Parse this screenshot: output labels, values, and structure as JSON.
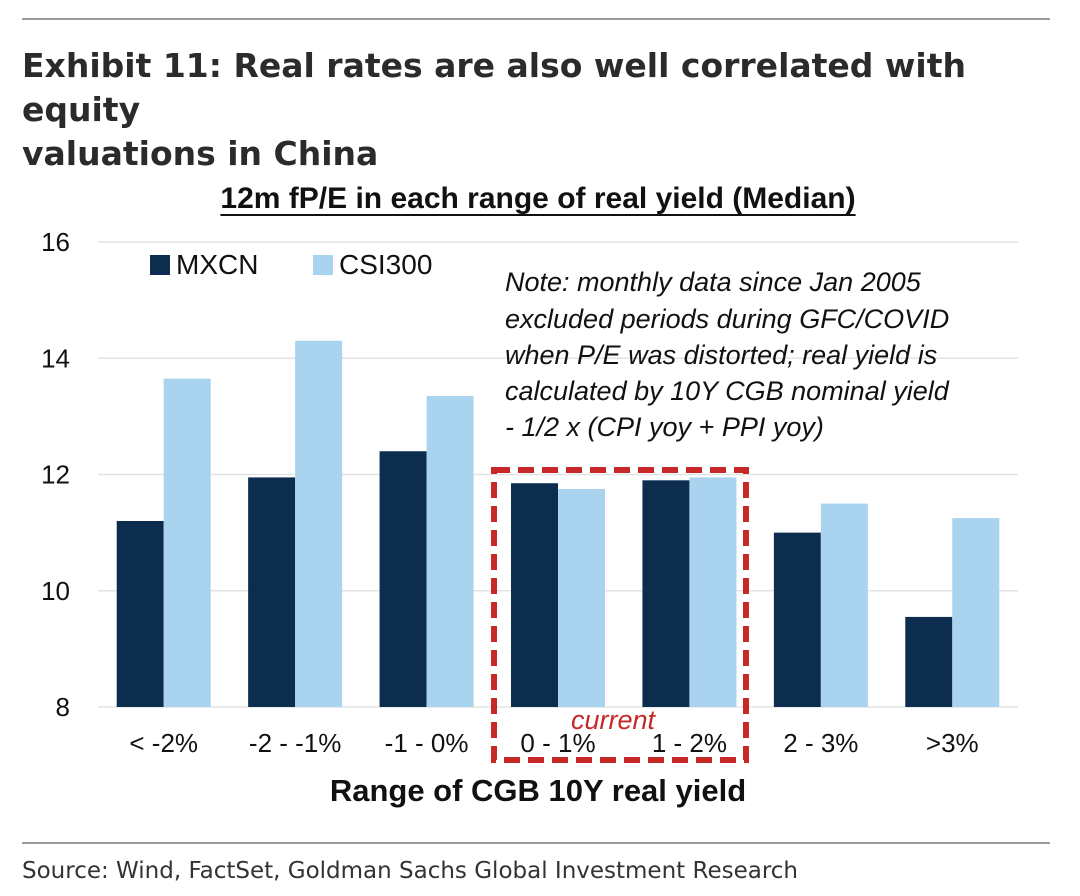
{
  "exhibit": {
    "title_line1": "Exhibit 11: Real rates are also well correlated with equity",
    "title_line2": "valuations in China",
    "source": "Source: Wind, FactSet, Goldman Sachs Global Investment Research"
  },
  "chart_data": {
    "type": "bar",
    "title": "12m fP/E in each range of real yield (Median)",
    "xlabel": "Range of CGB 10Y real yield",
    "ylabel": "",
    "ylim": [
      8,
      16
    ],
    "yticks": [
      "8",
      "10",
      "12",
      "14",
      "16"
    ],
    "categories": [
      "< -2%",
      "-2 - -1%",
      "-1 - 0%",
      "0 - 1%",
      "1 - 2%",
      "2 - 3%",
      ">3%"
    ],
    "series": [
      {
        "name": "MXCN",
        "color": "#0d2d4f",
        "values": [
          11.2,
          11.95,
          12.4,
          11.85,
          11.9,
          11.0,
          9.55
        ]
      },
      {
        "name": "CSI300",
        "color": "#a9d3ef",
        "values": [
          13.65,
          14.3,
          13.35,
          11.75,
          11.95,
          11.5,
          11.25
        ]
      }
    ],
    "legend_position": "top-left",
    "annotations": {
      "note_lines": [
        "Note: monthly data since Jan 2005",
        "excluded periods during GFC/COVID",
        "when P/E was distorted; real yield is",
        "calculated by 10Y CGB nominal yield",
        "- 1/2 x (CPI yoy + PPI yoy)"
      ],
      "highlight_label": "current",
      "highlight_categories": [
        "0 - 1%",
        "1 - 2%"
      ],
      "highlight_color": "#c62828"
    }
  }
}
